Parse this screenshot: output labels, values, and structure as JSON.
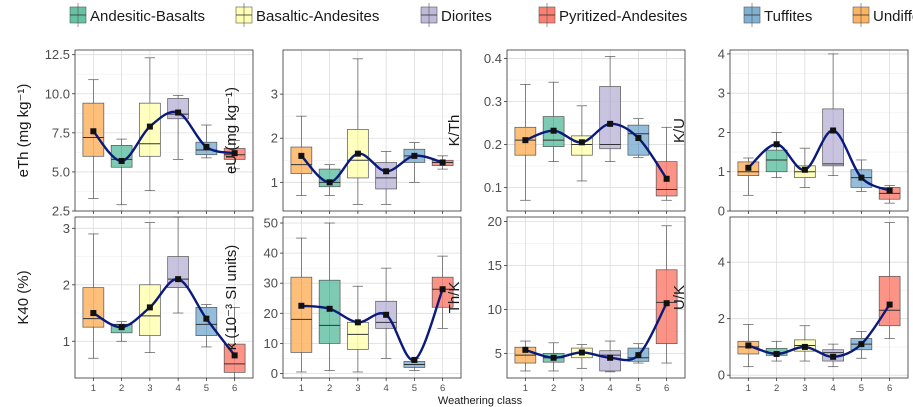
{
  "legend": {
    "items": [
      {
        "label": "Andesitic-Basalts",
        "color": "#66C2A5"
      },
      {
        "label": "Basaltic-Andesites",
        "color": "#FFFFB3"
      },
      {
        "label": "Diorites",
        "color": "#BEBADA"
      },
      {
        "label": "Pyritized-Andesites",
        "color": "#FB8072"
      },
      {
        "label": "Tuffites",
        "color": "#80B1D3"
      },
      {
        "label": "Undifferentiated Sediments",
        "color": "#FDB462"
      }
    ]
  },
  "xlabel": "Weathering class",
  "chart_data": [
    {
      "type": "box",
      "ylabel": "eTh (mg kg⁻¹)",
      "categories": [
        "1",
        "2",
        "3",
        "4",
        "5",
        "6"
      ],
      "ylim": [
        2.5,
        12.8
      ],
      "yticks": [
        2.5,
        5.0,
        7.5,
        10.0,
        12.5
      ],
      "tick_decimals": 1,
      "boxes": [
        {
          "class": "1",
          "group": "Undifferentiated Sediments",
          "min": 3.3,
          "q1": 6.0,
          "median": 7.2,
          "q3": 9.4,
          "max": 10.9,
          "mean": 7.6
        },
        {
          "class": "2",
          "group": "Andesitic-Basalts",
          "min": 2.9,
          "q1": 5.3,
          "median": 5.8,
          "q3": 6.7,
          "max": 7.1,
          "mean": 5.7
        },
        {
          "class": "3",
          "group": "Basaltic-Andesites",
          "min": 3.8,
          "q1": 6.0,
          "median": 6.8,
          "q3": 9.4,
          "max": 12.3,
          "mean": 7.9
        },
        {
          "class": "4",
          "group": "Diorites",
          "min": 5.8,
          "q1": 8.4,
          "median": 8.7,
          "q3": 9.7,
          "max": 9.9,
          "mean": 8.8
        },
        {
          "class": "5",
          "group": "Tuffites",
          "min": 5.9,
          "q1": 6.1,
          "median": 6.4,
          "q3": 6.9,
          "max": 8.0,
          "mean": 6.6
        },
        {
          "class": "6",
          "group": "Pyritized-Andesites",
          "min": 5.2,
          "q1": 5.8,
          "median": 6.1,
          "q3": 6.5,
          "max": 7.0,
          "mean": 6.2
        }
      ]
    },
    {
      "type": "box",
      "ylabel": "eU (mg kg⁻¹)",
      "categories": [
        "1",
        "2",
        "3",
        "4",
        "5",
        "6"
      ],
      "ylim": [
        0.35,
        4.0
      ],
      "yticks": [
        1,
        2,
        3
      ],
      "tick_decimals": 0,
      "boxes": [
        {
          "class": "1",
          "group": "Undifferentiated Sediments",
          "min": 0.7,
          "q1": 1.2,
          "median": 1.4,
          "q3": 1.8,
          "max": 2.5,
          "mean": 1.6
        },
        {
          "class": "2",
          "group": "Andesitic-Basalts",
          "min": 0.7,
          "q1": 0.9,
          "median": 1.0,
          "q3": 1.3,
          "max": 1.4,
          "mean": 1.0
        },
        {
          "class": "3",
          "group": "Basaltic-Andesites",
          "min": 0.5,
          "q1": 1.1,
          "median": 1.5,
          "q3": 2.2,
          "max": 3.8,
          "mean": 1.65
        },
        {
          "class": "4",
          "group": "Diorites",
          "min": 0.5,
          "q1": 0.85,
          "median": 1.1,
          "q3": 1.45,
          "max": 1.7,
          "mean": 1.25
        },
        {
          "class": "5",
          "group": "Tuffites",
          "min": 1.0,
          "q1": 1.45,
          "median": 1.6,
          "q3": 1.75,
          "max": 1.9,
          "mean": 1.6
        },
        {
          "class": "6",
          "group": "Pyritized-Andesites",
          "min": 1.3,
          "q1": 1.38,
          "median": 1.45,
          "q3": 1.5,
          "max": 1.6,
          "mean": 1.45
        }
      ]
    },
    {
      "type": "box",
      "ylabel": "K/Th",
      "categories": [
        "1",
        "2",
        "3",
        "4",
        "5",
        "6"
      ],
      "ylim": [
        0.045,
        0.42
      ],
      "yticks": [
        0.1,
        0.2,
        0.3,
        0.4
      ],
      "tick_decimals": 1,
      "boxes": [
        {
          "class": "1",
          "group": "Undifferentiated Sediments",
          "min": 0.07,
          "q1": 0.175,
          "median": 0.21,
          "q3": 0.24,
          "max": 0.34,
          "mean": 0.21
        },
        {
          "class": "2",
          "group": "Andesitic-Basalts",
          "min": 0.16,
          "q1": 0.195,
          "median": 0.21,
          "q3": 0.265,
          "max": 0.345,
          "mean": 0.232
        },
        {
          "class": "3",
          "group": "Basaltic-Andesites",
          "min": 0.115,
          "q1": 0.175,
          "median": 0.2,
          "q3": 0.22,
          "max": 0.29,
          "mean": 0.205
        },
        {
          "class": "4",
          "group": "Diorites",
          "min": 0.16,
          "q1": 0.19,
          "median": 0.2,
          "q3": 0.335,
          "max": 0.405,
          "mean": 0.248
        },
        {
          "class": "5",
          "group": "Tuffites",
          "min": 0.17,
          "q1": 0.175,
          "median": 0.225,
          "q3": 0.245,
          "max": 0.26,
          "mean": 0.215
        },
        {
          "class": "6",
          "group": "Pyritized-Andesites",
          "min": 0.07,
          "q1": 0.08,
          "median": 0.095,
          "q3": 0.16,
          "max": 0.24,
          "mean": 0.12
        }
      ]
    },
    {
      "type": "box",
      "ylabel": "K/U",
      "categories": [
        "1",
        "2",
        "3",
        "4",
        "5",
        "6"
      ],
      "ylim": [
        0,
        4.1
      ],
      "yticks": [
        0,
        1,
        2,
        3,
        4
      ],
      "tick_decimals": 0,
      "boxes": [
        {
          "class": "1",
          "group": "Undifferentiated Sediments",
          "min": 0.4,
          "q1": 0.9,
          "median": 1.0,
          "q3": 1.25,
          "max": 1.35,
          "mean": 1.1
        },
        {
          "class": "2",
          "group": "Andesitic-Basalts",
          "min": 0.85,
          "q1": 1.0,
          "median": 1.3,
          "q3": 1.55,
          "max": 2.0,
          "mean": 1.7
        },
        {
          "class": "3",
          "group": "Basaltic-Andesites",
          "min": 0.6,
          "q1": 0.85,
          "median": 1.0,
          "q3": 1.15,
          "max": 1.6,
          "mean": 1.05
        },
        {
          "class": "4",
          "group": "Diorites",
          "min": 0.9,
          "q1": 1.15,
          "median": 1.2,
          "q3": 2.6,
          "max": 4.0,
          "mean": 2.05
        },
        {
          "class": "5",
          "group": "Tuffites",
          "min": 0.5,
          "q1": 0.6,
          "median": 0.85,
          "q3": 1.05,
          "max": 1.3,
          "mean": 0.85
        },
        {
          "class": "6",
          "group": "Pyritized-Andesites",
          "min": 0.2,
          "q1": 0.3,
          "median": 0.45,
          "q3": 0.6,
          "max": 0.65,
          "mean": 0.52
        }
      ]
    },
    {
      "type": "box",
      "ylabel": "K40 (%)",
      "categories": [
        "1",
        "2",
        "3",
        "4",
        "5",
        "6"
      ],
      "ylim": [
        0.35,
        3.2
      ],
      "yticks": [
        1,
        2,
        3
      ],
      "tick_decimals": 0,
      "boxes": [
        {
          "class": "1",
          "group": "Undifferentiated Sediments",
          "min": 0.7,
          "q1": 1.25,
          "median": 1.4,
          "q3": 1.95,
          "max": 2.9,
          "mean": 1.5
        },
        {
          "class": "2",
          "group": "Andesitic-Basalts",
          "min": 1.0,
          "q1": 1.15,
          "median": 1.3,
          "q3": 1.3,
          "max": 1.35,
          "mean": 1.25
        },
        {
          "class": "3",
          "group": "Basaltic-Andesites",
          "min": 0.8,
          "q1": 1.1,
          "median": 1.45,
          "q3": 2.0,
          "max": 3.1,
          "mean": 1.6
        },
        {
          "class": "4",
          "group": "Diorites",
          "min": 1.5,
          "q1": 1.95,
          "median": 2.1,
          "q3": 2.5,
          "max": 3.2,
          "mean": 2.1
        },
        {
          "class": "5",
          "group": "Tuffites",
          "min": 0.9,
          "q1": 1.1,
          "median": 1.3,
          "q3": 1.6,
          "max": 1.65,
          "mean": 1.4
        },
        {
          "class": "6",
          "group": "Pyritized-Andesites",
          "min": 0.35,
          "q1": 0.45,
          "median": 0.6,
          "q3": 0.95,
          "max": 1.6,
          "mean": 0.75
        }
      ]
    },
    {
      "type": "box",
      "ylabel": "κ (10⁻³ SI units)",
      "categories": [
        "1",
        "2",
        "3",
        "4",
        "5",
        "6"
      ],
      "ylim": [
        -1.5,
        52
      ],
      "yticks": [
        0,
        10,
        20,
        30,
        40,
        50
      ],
      "tick_decimals": 0,
      "boxes": [
        {
          "class": "1",
          "group": "Undifferentiated Sediments",
          "min": 0.5,
          "q1": 7,
          "median": 18,
          "q3": 32,
          "max": 45,
          "mean": 22.5
        },
        {
          "class": "2",
          "group": "Andesitic-Basalts",
          "min": 1,
          "q1": 10,
          "median": 16,
          "q3": 31,
          "max": 50,
          "mean": 21.5
        },
        {
          "class": "3",
          "group": "Basaltic-Andesites",
          "min": 0.5,
          "q1": 8,
          "median": 13,
          "q3": 17,
          "max": 29,
          "mean": 17
        },
        {
          "class": "4",
          "group": "Diorites",
          "min": 5,
          "q1": 15,
          "median": 17,
          "q3": 24,
          "max": 35,
          "mean": 19.5
        },
        {
          "class": "5",
          "group": "Tuffites",
          "min": 1,
          "q1": 2,
          "median": 3,
          "q3": 4,
          "max": 5,
          "mean": 4.5
        },
        {
          "class": "6",
          "group": "Pyritized-Andesites",
          "min": 15,
          "q1": 22,
          "median": 28,
          "q3": 32,
          "max": 39,
          "mean": 28
        }
      ]
    },
    {
      "type": "box",
      "ylabel": "Th/K",
      "categories": [
        "1",
        "2",
        "3",
        "4",
        "5",
        "6"
      ],
      "ylim": [
        2.2,
        20.5
      ],
      "yticks": [
        5,
        10,
        15,
        20
      ],
      "tick_decimals": 0,
      "boxes": [
        {
          "class": "1",
          "group": "Undifferentiated Sediments",
          "min": 3.0,
          "q1": 3.9,
          "median": 4.8,
          "q3": 5.7,
          "max": 6.4,
          "mean": 5.4
        },
        {
          "class": "2",
          "group": "Andesitic-Basalts",
          "min": 3.0,
          "q1": 4.0,
          "median": 4.5,
          "q3": 5.0,
          "max": 6.2,
          "mean": 4.5
        },
        {
          "class": "3",
          "group": "Basaltic-Andesites",
          "min": 3.3,
          "q1": 4.5,
          "median": 5.0,
          "q3": 5.6,
          "max": 6.0,
          "mean": 5.1
        },
        {
          "class": "4",
          "group": "Diorites",
          "min": 2.9,
          "q1": 3.0,
          "median": 4.8,
          "q3": 5.3,
          "max": 6.4,
          "mean": 4.5
        },
        {
          "class": "5",
          "group": "Tuffites",
          "min": 3.9,
          "q1": 4.1,
          "median": 4.5,
          "q3": 5.6,
          "max": 6.1,
          "mean": 4.8
        },
        {
          "class": "6",
          "group": "Pyritized-Andesites",
          "min": 3.9,
          "q1": 6.1,
          "median": 10.8,
          "q3": 14.5,
          "max": 19.5,
          "mean": 10.7
        }
      ]
    },
    {
      "type": "box",
      "ylabel": "U/K",
      "categories": [
        "1",
        "2",
        "3",
        "4",
        "5",
        "6"
      ],
      "ylim": [
        -0.1,
        5.6
      ],
      "yticks": [
        0,
        2,
        4
      ],
      "tick_decimals": 0,
      "boxes": [
        {
          "class": "1",
          "group": "Undifferentiated Sediments",
          "min": 0.3,
          "q1": 0.75,
          "median": 1.0,
          "q3": 1.2,
          "max": 1.8,
          "mean": 1.05
        },
        {
          "class": "2",
          "group": "Andesitic-Basalts",
          "min": 0.5,
          "q1": 0.7,
          "median": 0.8,
          "q3": 0.95,
          "max": 1.2,
          "mean": 0.75
        },
        {
          "class": "3",
          "group": "Basaltic-Andesites",
          "min": 0.5,
          "q1": 0.85,
          "median": 1.05,
          "q3": 1.25,
          "max": 1.75,
          "mean": 1.0
        },
        {
          "class": "4",
          "group": "Diorites",
          "min": 0.3,
          "q1": 0.5,
          "median": 0.8,
          "q3": 0.9,
          "max": 1.1,
          "mean": 0.65
        },
        {
          "class": "5",
          "group": "Tuffites",
          "min": 0.6,
          "q1": 0.9,
          "median": 1.1,
          "q3": 1.3,
          "max": 1.55,
          "mean": 1.1
        },
        {
          "class": "6",
          "group": "Pyritized-Andesites",
          "min": 1.3,
          "q1": 1.75,
          "median": 2.3,
          "q3": 3.5,
          "max": 5.4,
          "mean": 2.5
        }
      ]
    }
  ]
}
